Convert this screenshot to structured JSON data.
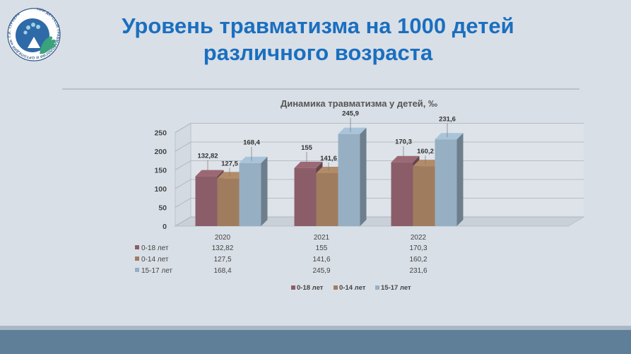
{
  "slide": {
    "title_line1": "Уровень травматизма на 1000 детей",
    "title_line2": "различного возраста"
  },
  "logo": {
    "ring_text": "НИИ ДЕТСКОЙ ТРАВМАТОЛОГИИ И ОРТОПЕДИИ им. Г.И. ТУРНЕРА"
  },
  "colors": {
    "series_0_18": "#8b5d68",
    "series_0_14": "#a07c5e",
    "series_15_17": "#97afc3",
    "title": "#1a6fc0",
    "background": "#d9dfe6",
    "footer": "#5f7f98"
  },
  "chart_data": {
    "type": "bar",
    "title": "Динамика травматизма у детей, ‰",
    "categories": [
      "2020",
      "2021",
      "2022"
    ],
    "series": [
      {
        "name": "0-18 лет",
        "values": [
          132.82,
          155,
          170.3
        ],
        "labels": [
          "132,82",
          "155",
          "170,3"
        ]
      },
      {
        "name": "0-14 лет",
        "values": [
          127.5,
          141.6,
          160.2
        ],
        "labels": [
          "127,5",
          "141,6",
          "160,2"
        ]
      },
      {
        "name": "15-17 лет",
        "values": [
          168.4,
          245.9,
          231.6
        ],
        "labels": [
          "168,4",
          "245,9",
          "231,6"
        ]
      }
    ],
    "yticks": [
      "0",
      "50",
      "100",
      "150",
      "200",
      "250"
    ],
    "ylim": [
      0,
      250
    ],
    "grid": true,
    "data_table": true,
    "legend_position": "bottom",
    "style": "3d-clustered-column"
  }
}
